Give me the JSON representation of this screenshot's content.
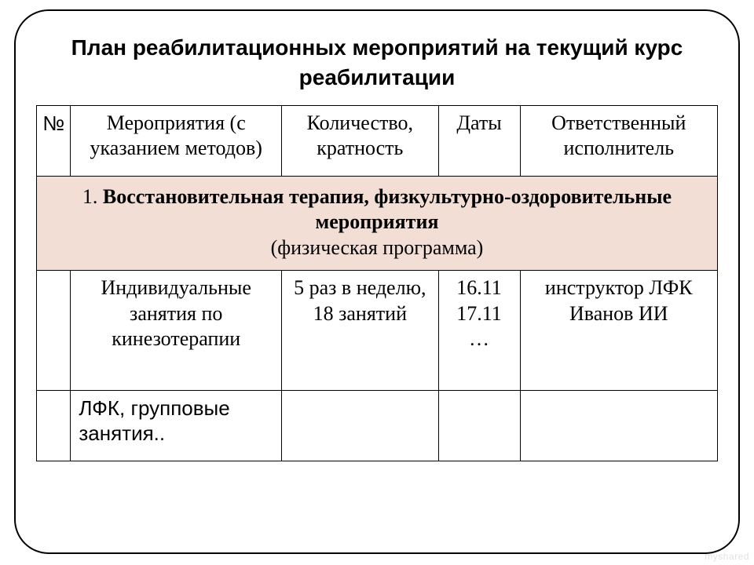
{
  "title": "План реабилитационных мероприятий на текущий курс реабилитации",
  "table": {
    "columns": [
      {
        "key": "num",
        "label": "№",
        "width_pct": 5
      },
      {
        "key": "event",
        "label": "Мероприятия (с указанием методов)",
        "width_pct": 31
      },
      {
        "key": "qty",
        "label": "Количество, кратность",
        "width_pct": 23
      },
      {
        "key": "dates",
        "label": "Даты",
        "width_pct": 12
      },
      {
        "key": "owner",
        "label": "Ответственный исполнитель",
        "width_pct": 29
      }
    ],
    "section": {
      "number": "1.",
      "title_bold": "Восстановительная терапия, физкультурно-оздоровительные мероприятия",
      "subtitle": "(физическая программа)",
      "background_color": "#f3ded6"
    },
    "rows": [
      {
        "num": "",
        "event": "Индивидуальные занятия по кинезотерапии",
        "qty": "5 раз в неделю, 18 занятий",
        "dates": "16.11\n17.11\n…",
        "owner": "инструктор ЛФК\nИванов ИИ"
      },
      {
        "num": "",
        "event": "ЛФК, групповые занятия..",
        "qty": "",
        "dates": "",
        "owner": ""
      }
    ]
  },
  "border_color": "#000000",
  "page_background": "#ffffff",
  "watermark": "myshared"
}
